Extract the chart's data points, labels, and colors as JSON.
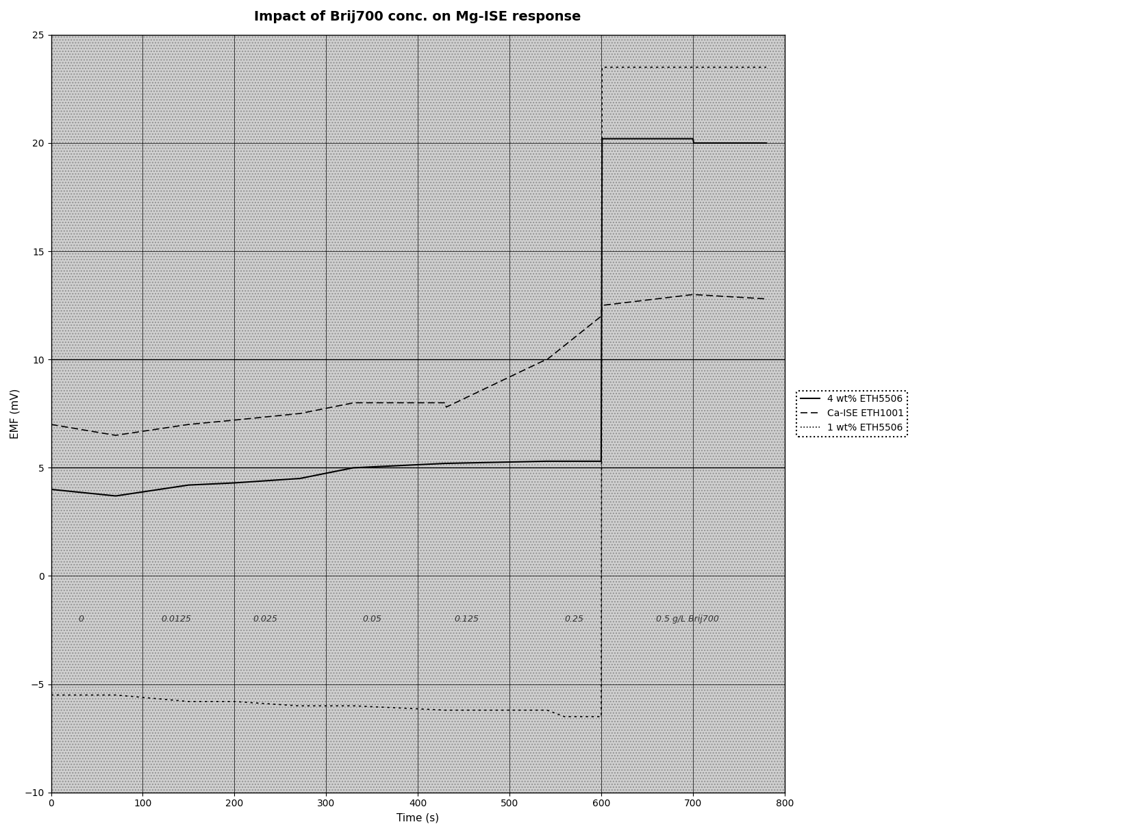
{
  "title": "Impact of Brij700 conc. on Mg-ISE response",
  "xlabel": "Time (s)",
  "ylabel": "EMF (mV)",
  "xlim": [
    0,
    800
  ],
  "ylim": [
    -10,
    25
  ],
  "xticks": [
    0,
    100,
    200,
    300,
    400,
    500,
    600,
    700,
    800
  ],
  "yticks": [
    -10,
    -5,
    0,
    5,
    10,
    15,
    20,
    25
  ],
  "conc_labels": [
    "0",
    "0.0125",
    "0.025",
    "0.05",
    "0.125",
    "0.25",
    "0.5 g/L Brij700"
  ],
  "conc_x": [
    30,
    120,
    220,
    340,
    440,
    560,
    660
  ],
  "conc_y": -2.0,
  "hlines": [
    5.0,
    10.0
  ],
  "background_color": "#ffffff",
  "plot_bg_color": "#cccccc",
  "legend_labels": [
    "4 wt% ETH5506",
    "Ca-ISE ETH1001",
    "1 wt% ETH5506"
  ],
  "series": {
    "eth5506_4wt": {
      "x": [
        0,
        70,
        71,
        150,
        200,
        270,
        271,
        330,
        331,
        430,
        431,
        540,
        541,
        600,
        601,
        700,
        701,
        780
      ],
      "y": [
        4.0,
        3.7,
        3.7,
        4.2,
        4.3,
        4.5,
        4.5,
        5.0,
        5.0,
        5.2,
        5.2,
        5.3,
        5.3,
        5.3,
        20.2,
        20.2,
        20.0,
        20.0
      ],
      "color": "#000000",
      "linestyle": "solid",
      "linewidth": 1.5,
      "label": "4 wt% ETH5506"
    },
    "ca_ise": {
      "x": [
        0,
        70,
        71,
        150,
        200,
        270,
        271,
        330,
        331,
        430,
        431,
        540,
        541,
        600,
        601,
        700,
        701,
        780
      ],
      "y": [
        7.0,
        6.5,
        6.5,
        7.0,
        7.2,
        7.5,
        7.5,
        8.0,
        8.0,
        8.0,
        7.8,
        10.0,
        10.0,
        12.0,
        12.5,
        13.0,
        13.0,
        12.8
      ],
      "color": "#000000",
      "linestyle": "dashed",
      "linewidth": 1.2,
      "label": "Ca-ISE ETH1001"
    },
    "eth5506_1wt": {
      "x": [
        0,
        70,
        71,
        150,
        200,
        270,
        271,
        330,
        331,
        430,
        431,
        540,
        541,
        560,
        561,
        600,
        601,
        650,
        651,
        700,
        701,
        780
      ],
      "y": [
        -5.5,
        -5.5,
        -5.5,
        -5.8,
        -5.8,
        -6.0,
        -6.0,
        -6.0,
        -6.0,
        -6.2,
        -6.2,
        -6.2,
        -6.2,
        -6.5,
        -6.5,
        -6.5,
        23.5,
        23.5,
        23.5,
        23.5,
        23.5,
        23.5
      ],
      "color": "#000000",
      "linestyle": "dotted",
      "linewidth": 1.2,
      "label": "1 wt% ETH5506"
    }
  },
  "title_fontsize": 14,
  "label_fontsize": 11,
  "tick_fontsize": 10
}
